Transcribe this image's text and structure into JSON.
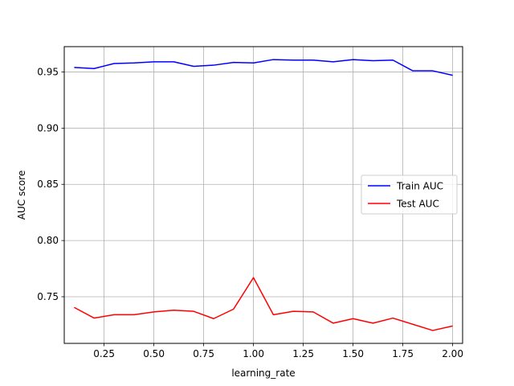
{
  "chart_data": {
    "type": "line",
    "title": "",
    "xlabel": "learning_rate",
    "ylabel": "AUC score",
    "xlim": [
      0.05,
      2.05
    ],
    "ylim": [
      0.7085,
      0.9725
    ],
    "grid": true,
    "legend_position": "center-right",
    "x": [
      0.1,
      0.2,
      0.3,
      0.4,
      0.5,
      0.6,
      0.7,
      0.8,
      0.9,
      1.0,
      1.1,
      1.2,
      1.3,
      1.4,
      1.5,
      1.6,
      1.7,
      1.8,
      1.9,
      2.0
    ],
    "x_ticks": [
      0.25,
      0.5,
      0.75,
      1.0,
      1.25,
      1.5,
      1.75,
      2.0
    ],
    "x_tick_labels": [
      "0.25",
      "0.50",
      "0.75",
      "1.00",
      "1.25",
      "1.50",
      "1.75",
      "2.00"
    ],
    "y_ticks": [
      0.75,
      0.8,
      0.85,
      0.9,
      0.95
    ],
    "y_tick_labels": [
      "0.75",
      "0.80",
      "0.85",
      "0.90",
      "0.95"
    ],
    "series": [
      {
        "name": "Train AUC",
        "color": "#0000ff",
        "values": [
          0.954,
          0.953,
          0.9575,
          0.958,
          0.959,
          0.959,
          0.955,
          0.956,
          0.9585,
          0.958,
          0.961,
          0.9605,
          0.9605,
          0.959,
          0.961,
          0.96,
          0.9605,
          0.951,
          0.951,
          0.947
        ]
      },
      {
        "name": "Test AUC",
        "color": "#ff0000",
        "values": [
          0.7405,
          0.731,
          0.734,
          0.734,
          0.7365,
          0.738,
          0.737,
          0.7305,
          0.739,
          0.767,
          0.734,
          0.737,
          0.7365,
          0.7265,
          0.7305,
          0.7265,
          0.731,
          0.7255,
          0.72,
          0.724
        ]
      }
    ]
  }
}
